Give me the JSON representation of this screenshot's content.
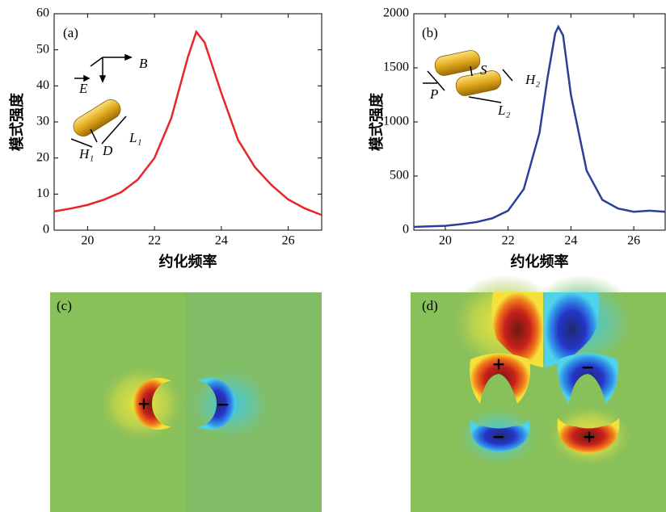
{
  "chart_data": [
    {
      "type": "line",
      "ylabel": "模式强度",
      "xlabel": "约化频率",
      "annotations": [
        "(a)",
        "E",
        "B",
        "H₁",
        "D",
        "L₁"
      ],
      "xlim": [
        19,
        27
      ],
      "xticks": [
        20,
        22,
        24,
        26
      ],
      "ylim": [
        0,
        60
      ],
      "yticks": [
        0,
        10,
        20,
        30,
        40,
        50,
        60
      ],
      "series": [
        {
          "color": "#e8262a",
          "x": [
            19,
            19.5,
            20,
            20.5,
            21,
            21.5,
            22,
            22.5,
            23,
            23.25,
            23.5,
            24,
            24.5,
            25,
            25.5,
            26,
            26.5,
            27
          ],
          "values": [
            5.2,
            6,
            7,
            8.5,
            10.5,
            14,
            20,
            31,
            48,
            55,
            52,
            38,
            25,
            17.5,
            12.5,
            8.5,
            6,
            4.2
          ]
        }
      ]
    },
    {
      "type": "line",
      "ylabel": "模式强度",
      "xlabel": "约化频率",
      "annotations": [
        "(b)",
        "S",
        "H₂",
        "P",
        "L₂"
      ],
      "xlim": [
        19,
        27
      ],
      "xticks": [
        20,
        22,
        24,
        26
      ],
      "ylim": [
        0,
        2000
      ],
      "yticks": [
        0,
        500,
        1000,
        1500,
        2000
      ],
      "series": [
        {
          "color": "#2b3f9a",
          "x": [
            19,
            19.5,
            20,
            20.5,
            21,
            21.5,
            22,
            22.5,
            23,
            23.25,
            23.5,
            23.6,
            23.75,
            24,
            24.5,
            25,
            25.5,
            26,
            26.5,
            27
          ],
          "values": [
            30,
            35,
            40,
            55,
            75,
            110,
            180,
            380,
            900,
            1400,
            1820,
            1880,
            1800,
            1250,
            550,
            280,
            200,
            170,
            180,
            170
          ]
        }
      ]
    }
  ],
  "field_maps": [
    {
      "label": "(c)",
      "signs": [
        "+",
        "−"
      ]
    },
    {
      "label": "(d)",
      "signs": [
        "+",
        "−",
        "−",
        "+"
      ]
    }
  ]
}
